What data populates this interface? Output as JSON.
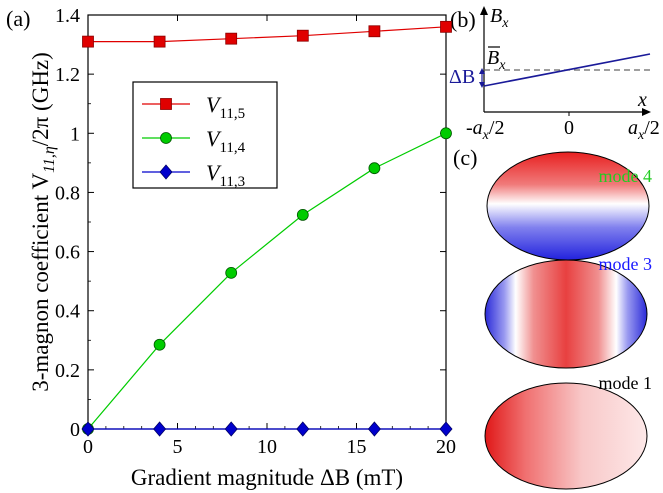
{
  "panel_labels": {
    "a": "(a)",
    "b": "(b)",
    "c": "(c)"
  },
  "chart_data": {
    "type": "line",
    "xlabel": "Gradient magnitude ΔB (mT)",
    "ylabel": "3-magnon coefficient V",
    "ylabel_sub": "11,η",
    "ylabel_tail": "/2π (GHz)",
    "xlim": [
      0,
      20
    ],
    "ylim": [
      0,
      1.4
    ],
    "xticks": [
      0,
      5,
      10,
      15,
      20
    ],
    "yticks": [
      0,
      0.2,
      0.4,
      0.6,
      0.8,
      1,
      1.2,
      1.4
    ],
    "ytick_labels": [
      "0",
      "0.2",
      "0.4",
      "0.6",
      "0.8",
      "1",
      "1.2",
      "1.4"
    ],
    "legend_position": "upper-left inside",
    "series": [
      {
        "name": "V",
        "sub": "11,5",
        "color": "#e00000",
        "marker": "square",
        "x": [
          0,
          4,
          8,
          12,
          16,
          20
        ],
        "y": [
          1.31,
          1.31,
          1.32,
          1.33,
          1.345,
          1.36
        ]
      },
      {
        "name": "V",
        "sub": "11,4",
        "color": "#00cc00",
        "marker": "circle",
        "x": [
          0,
          4,
          8,
          12,
          16,
          20
        ],
        "y": [
          0.0,
          0.285,
          0.528,
          0.724,
          0.882,
          1.0
        ]
      },
      {
        "name": "V",
        "sub": "11,3",
        "color": "#0000cc",
        "marker": "diamond",
        "x": [
          0,
          4,
          8,
          12,
          16,
          20
        ],
        "y": [
          0.0,
          0.0,
          0.0,
          0.0,
          0.0,
          0.0
        ]
      }
    ]
  },
  "inset_b": {
    "y_axis_label": "B",
    "y_axis_sub": "x",
    "mean_label": "B",
    "mean_sub": "x",
    "delta_label": "ΔB",
    "x_axis_label": "x",
    "tick_left": "-a",
    "tick_left_sub": "x",
    "tick_left_tail": "/2",
    "tick_mid": "0",
    "tick_right": "a",
    "tick_right_sub": "x",
    "tick_right_tail": "/2"
  },
  "modes": [
    {
      "label": "mode 4",
      "color": "#22cc22"
    },
    {
      "label": "mode 3",
      "color": "#1a1aff"
    },
    {
      "label": "mode 1",
      "color": "#000000"
    }
  ]
}
